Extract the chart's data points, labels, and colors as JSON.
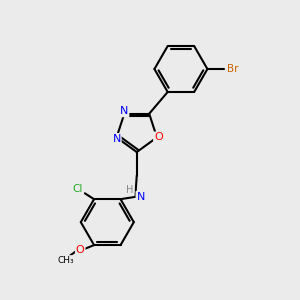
{
  "background_color": "#ebebeb",
  "bond_color": "#000000",
  "atom_colors": {
    "N": "#0000ff",
    "O": "#ff0000",
    "Br": "#cc6600",
    "Cl": "#22aa22",
    "H": "#888888",
    "C": "#000000"
  },
  "figsize": [
    3.0,
    3.0
  ],
  "dpi": 100
}
